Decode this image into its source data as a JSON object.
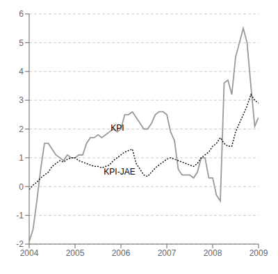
{
  "chart_data": {
    "type": "line",
    "title": "",
    "xlim": [
      2004.0,
      2009.0
    ],
    "ylim": [
      -2,
      6
    ],
    "xticks": [
      2004,
      2005,
      2006,
      2007,
      2008,
      2009
    ],
    "yticks": [
      -2,
      -1,
      0,
      1,
      2,
      3,
      4,
      5,
      6
    ],
    "grid": true,
    "x": [
      2004.0,
      2004.083,
      2004.167,
      2004.25,
      2004.333,
      2004.417,
      2004.5,
      2004.583,
      2004.667,
      2004.75,
      2004.833,
      2004.917,
      2005.0,
      2005.083,
      2005.167,
      2005.25,
      2005.333,
      2005.417,
      2005.5,
      2005.583,
      2005.667,
      2005.75,
      2005.833,
      2005.917,
      2006.0,
      2006.083,
      2006.167,
      2006.25,
      2006.333,
      2006.417,
      2006.5,
      2006.583,
      2006.667,
      2006.75,
      2006.833,
      2006.917,
      2007.0,
      2007.083,
      2007.167,
      2007.25,
      2007.333,
      2007.417,
      2007.5,
      2007.583,
      2007.667,
      2007.75,
      2007.833,
      2007.917,
      2008.0,
      2008.083,
      2008.167,
      2008.25,
      2008.333,
      2008.417,
      2008.5,
      2008.583,
      2008.667,
      2008.75,
      2008.833,
      2008.917,
      2009.0
    ],
    "series": [
      {
        "name": "KPI",
        "color": "#999999",
        "line_style": "solid",
        "values": [
          -1.9,
          -1.5,
          -0.5,
          0.6,
          1.5,
          1.5,
          1.3,
          1.1,
          1.0,
          0.9,
          1.1,
          1.0,
          1.0,
          1.1,
          1.1,
          1.5,
          1.7,
          1.7,
          1.8,
          1.7,
          1.8,
          1.9,
          2.0,
          1.9,
          2.0,
          2.5,
          2.5,
          2.6,
          2.4,
          2.2,
          2.0,
          2.0,
          2.2,
          2.5,
          2.6,
          2.6,
          2.5,
          1.9,
          1.6,
          0.6,
          0.4,
          0.4,
          0.4,
          0.3,
          0.5,
          1.0,
          1.0,
          0.3,
          0.3,
          -0.3,
          -0.5,
          3.6,
          3.7,
          3.2,
          4.5,
          5.0,
          5.5,
          5.0,
          3.5,
          2.1,
          2.4
        ]
      },
      {
        "name": "KPI-JAE",
        "color": "#111111",
        "line_style": "dotted",
        "values": [
          -0.1,
          0.05,
          0.15,
          0.3,
          0.4,
          0.5,
          0.7,
          0.8,
          0.9,
          0.85,
          0.95,
          1.0,
          1.0,
          0.9,
          0.85,
          0.8,
          0.75,
          0.7,
          0.7,
          0.65,
          0.7,
          0.75,
          0.9,
          1.0,
          1.1,
          1.2,
          1.25,
          1.3,
          0.8,
          0.6,
          0.4,
          0.35,
          0.5,
          0.65,
          0.75,
          0.85,
          0.95,
          1.0,
          0.95,
          0.9,
          0.85,
          0.8,
          0.75,
          0.7,
          0.8,
          1.0,
          1.1,
          1.2,
          1.4,
          1.5,
          1.7,
          1.5,
          1.4,
          1.4,
          1.9,
          2.2,
          2.5,
          2.8,
          3.2,
          3.0,
          2.9
        ]
      }
    ],
    "annotations": [
      {
        "text": "KPI",
        "x": 2005.7,
        "y": 2.05
      },
      {
        "text": "KPI-JAE",
        "x": 2005.55,
        "y": 0.52
      }
    ]
  }
}
